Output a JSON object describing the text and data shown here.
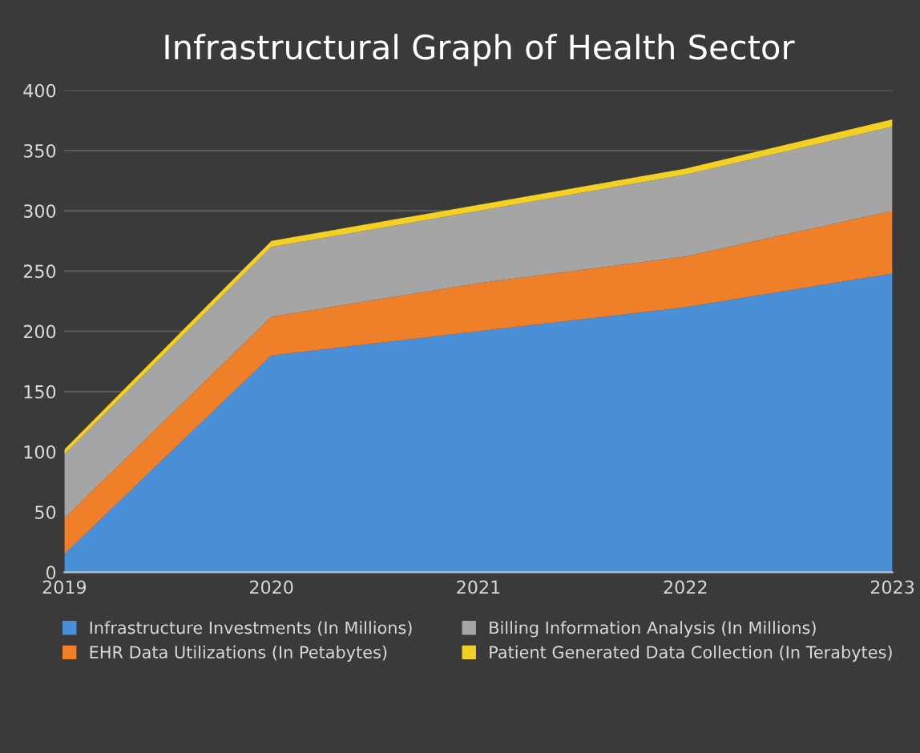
{
  "chart_data": {
    "type": "area",
    "stacked": true,
    "title": "Infrastructural Graph of Health Sector",
    "categories": [
      "2019",
      "2020",
      "2021",
      "2022",
      "2023"
    ],
    "series": [
      {
        "name": "Infrastructure Investments (In Millions)",
        "color": "#4a90d9",
        "values": [
          15,
          180,
          200,
          220,
          248
        ]
      },
      {
        "name": "EHR Data Utilizations (In Petabytes)",
        "color": "#f07f2a",
        "values": [
          30,
          32,
          40,
          42,
          52
        ]
      },
      {
        "name": "Billing Information Analysis (In Millions)",
        "color": "#a5a5a5",
        "values": [
          53,
          58,
          60,
          68,
          70
        ]
      },
      {
        "name": "Patient Generated Data Collection (In Terabytes)",
        "color": "#f2d024",
        "values": [
          4,
          5,
          5,
          5,
          6
        ]
      }
    ],
    "ylim": [
      0,
      400
    ],
    "yticks": [
      0,
      50,
      100,
      150,
      200,
      250,
      300,
      350,
      400
    ],
    "grid": "y",
    "legend": "bottom"
  }
}
